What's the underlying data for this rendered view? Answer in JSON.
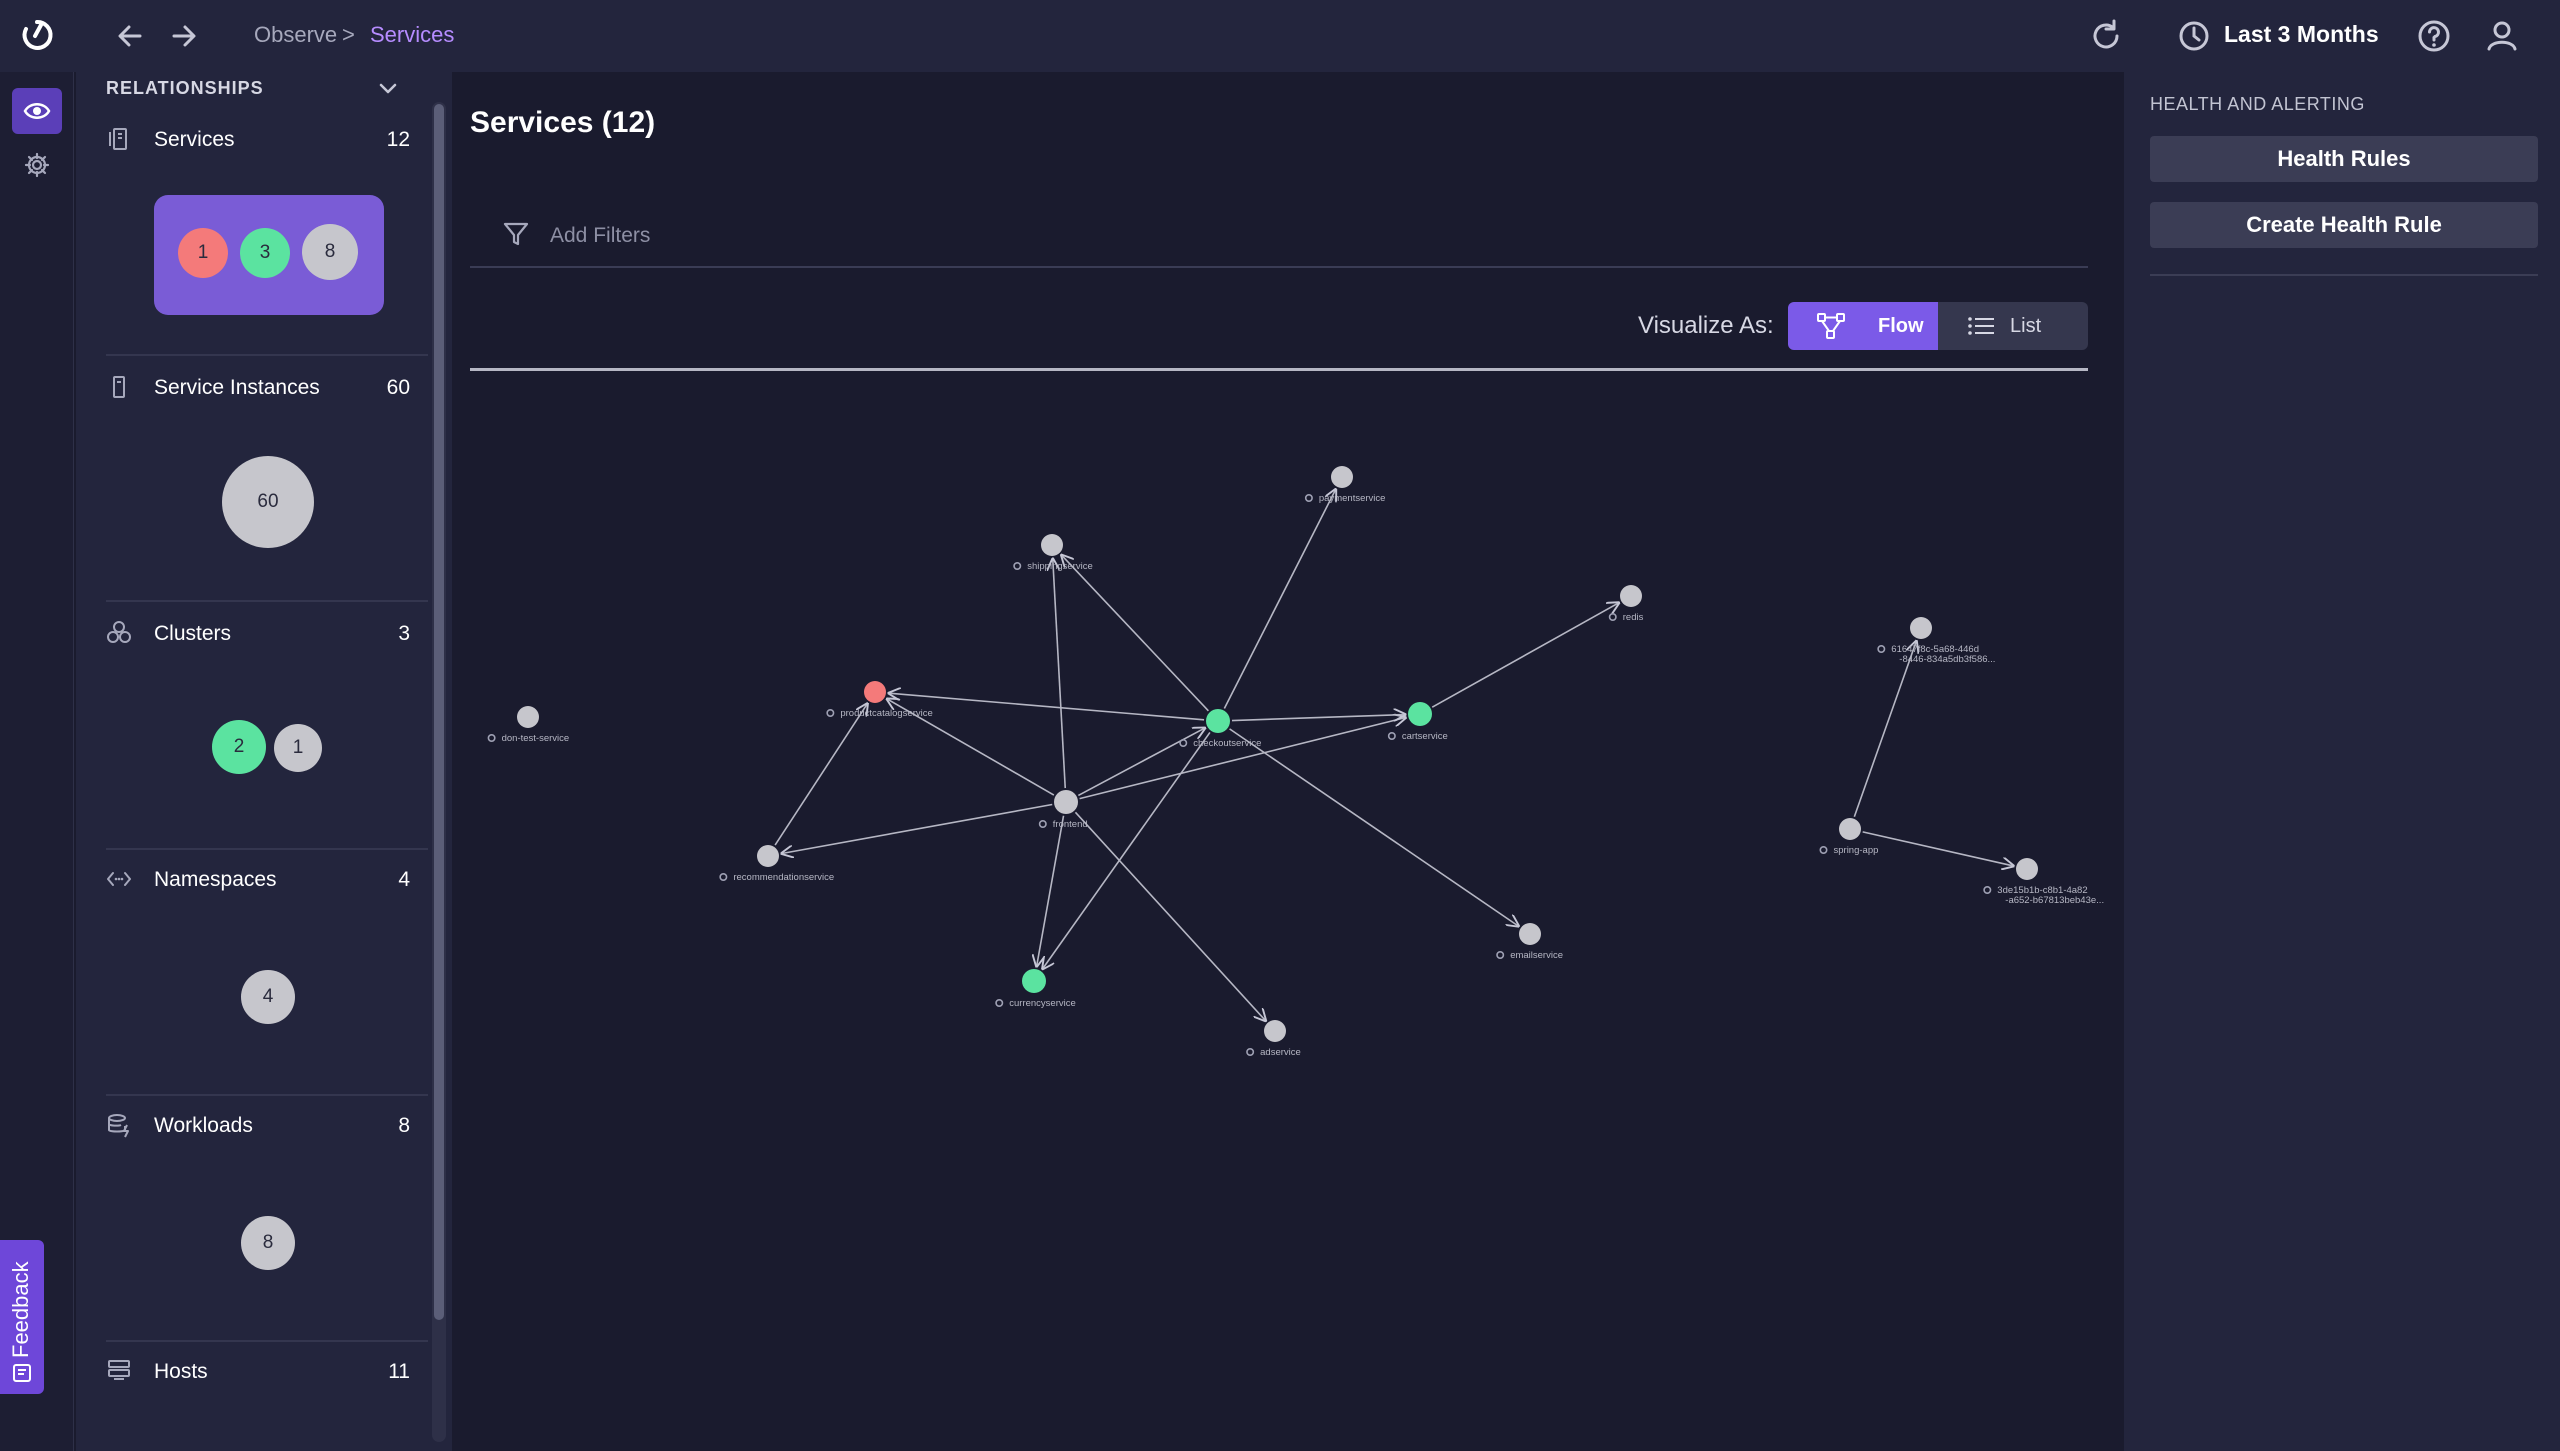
{
  "breadcrumb": {
    "parent": "Observe",
    "separator": ">",
    "current": "Services"
  },
  "header": {
    "time_range": "Last 3 Months"
  },
  "rail": {
    "feedback_label": "Feedback"
  },
  "relationships": {
    "heading": "RELATIONSHIPS",
    "sections": [
      {
        "key": "services",
        "title": "Services",
        "count": "12",
        "bubbles": [
          {
            "label": "1",
            "status": "critical"
          },
          {
            "label": "3",
            "status": "healthy"
          },
          {
            "label": "8",
            "status": "unknown"
          }
        ]
      },
      {
        "key": "service_instances",
        "title": "Service Instances",
        "count": "60",
        "bubbles": [
          {
            "label": "60",
            "status": "unknown"
          }
        ]
      },
      {
        "key": "clusters",
        "title": "Clusters",
        "count": "3",
        "bubbles": [
          {
            "label": "2",
            "status": "healthy"
          },
          {
            "label": "1",
            "status": "unknown"
          }
        ]
      },
      {
        "key": "namespaces",
        "title": "Namespaces",
        "count": "4",
        "bubbles": [
          {
            "label": "4",
            "status": "unknown"
          }
        ]
      },
      {
        "key": "workloads",
        "title": "Workloads",
        "count": "8",
        "bubbles": [
          {
            "label": "8",
            "status": "unknown"
          }
        ]
      },
      {
        "key": "hosts",
        "title": "Hosts",
        "count": "11",
        "bubbles": []
      }
    ]
  },
  "main": {
    "title": "Services (12)",
    "filter_placeholder": "Add Filters",
    "visualize_label": "Visualize As:",
    "visualize_options": [
      "Flow",
      "List"
    ],
    "visualize_selected": "Flow"
  },
  "flow_graph": {
    "nodes": [
      {
        "id": "paymentservice",
        "label": "paymentservice",
        "status": "unknown",
        "icon": "service-icon"
      },
      {
        "id": "shippingservice",
        "label": "shippingservice",
        "status": "unknown",
        "icon": "service-icon"
      },
      {
        "id": "redis",
        "label": "redis",
        "status": "unknown",
        "icon": "eye-icon"
      },
      {
        "id": "productcatalogservice",
        "label": "productcatalogservice",
        "status": "critical",
        "icon": "service-icon"
      },
      {
        "id": "checkoutservice",
        "label": "checkoutservice",
        "status": "healthy",
        "icon": "service-icon"
      },
      {
        "id": "cartservice",
        "label": "cartservice",
        "status": "healthy",
        "icon": "service-icon"
      },
      {
        "id": "don-test-service",
        "label": "don-test-service",
        "status": "unknown",
        "icon": "service-icon"
      },
      {
        "id": "frontend",
        "label": "frontend",
        "status": "unknown",
        "icon": "service-icon"
      },
      {
        "id": "recommendationservice",
        "label": "recommendationservice",
        "status": "unknown",
        "icon": "service-icon"
      },
      {
        "id": "emailservice",
        "label": "emailservice",
        "status": "unknown",
        "icon": "service-icon"
      },
      {
        "id": "currencyservice",
        "label": "currencyservice",
        "status": "healthy",
        "icon": "service-icon"
      },
      {
        "id": "adservice",
        "label": "adservice",
        "status": "unknown",
        "icon": "service-icon"
      },
      {
        "id": "n616",
        "label": "61647f8c-5a68-446d",
        "label2": "-8446-834a5db3f586...",
        "status": "unknown",
        "icon": "eye-icon"
      },
      {
        "id": "spring-app",
        "label": "spring-app",
        "status": "unknown",
        "icon": "service-icon"
      },
      {
        "id": "n3de",
        "label": "3de15b1b-c8b1-4a82",
        "label2": "-a652-b67813beb43e...",
        "status": "unknown",
        "icon": "eye-icon"
      }
    ],
    "edges": [
      {
        "from": "frontend",
        "to": "productcatalogservice"
      },
      {
        "from": "frontend",
        "to": "shippingservice"
      },
      {
        "from": "frontend",
        "to": "checkoutservice"
      },
      {
        "from": "frontend",
        "to": "cartservice"
      },
      {
        "from": "frontend",
        "to": "recommendationservice"
      },
      {
        "from": "frontend",
        "to": "currencyservice"
      },
      {
        "from": "frontend",
        "to": "adservice"
      },
      {
        "from": "checkoutservice",
        "to": "productcatalogservice"
      },
      {
        "from": "checkoutservice",
        "to": "shippingservice"
      },
      {
        "from": "checkoutservice",
        "to": "paymentservice"
      },
      {
        "from": "checkoutservice",
        "to": "cartservice"
      },
      {
        "from": "checkoutservice",
        "to": "emailservice"
      },
      {
        "from": "checkoutservice",
        "to": "currencyservice"
      },
      {
        "from": "cartservice",
        "to": "redis"
      },
      {
        "from": "recommendationservice",
        "to": "productcatalogservice"
      },
      {
        "from": "spring-app",
        "to": "n616"
      },
      {
        "from": "spring-app",
        "to": "n3de"
      }
    ]
  },
  "status_colors": {
    "critical": "#f47a7a",
    "healthy": "#5be3a0",
    "unknown": "#c6c6cc"
  },
  "right_panel": {
    "heading": "HEALTH AND ALERTING",
    "buttons": [
      "Health Rules",
      "Create Health Rule"
    ]
  }
}
